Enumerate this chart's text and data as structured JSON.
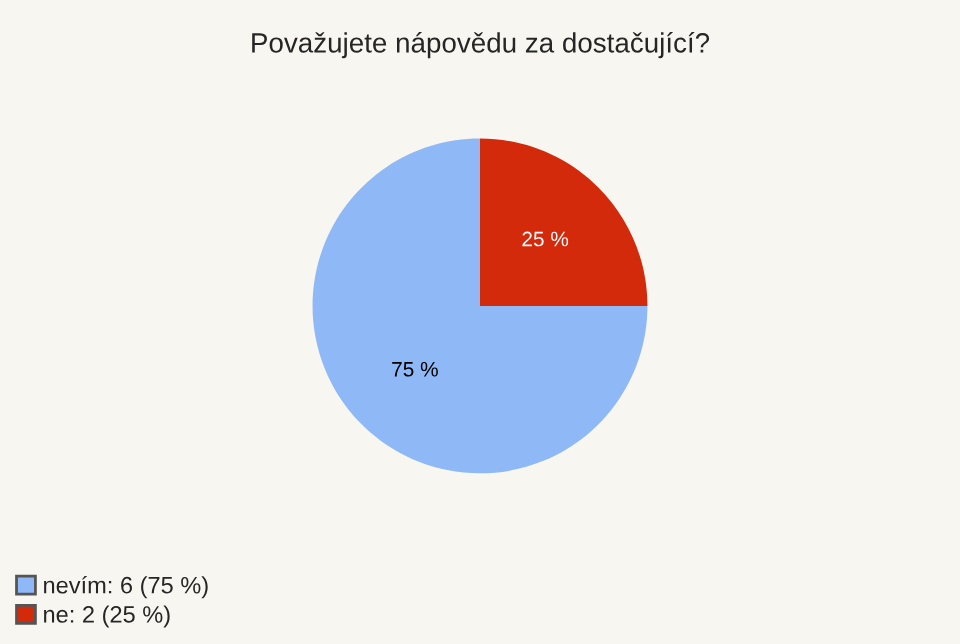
{
  "chart_data": {
    "type": "pie",
    "title": "Považujete nápovědu za dostačující?",
    "categories": [
      "nevím: 6 (75 %)",
      "ne: 2 (25 %)"
    ],
    "values": [
      75,
      25
    ],
    "colors": [
      "#8fb8f7",
      "#d42a0c"
    ],
    "value_labels": [
      "75 %",
      "25 %"
    ],
    "legend": "bottom left"
  }
}
